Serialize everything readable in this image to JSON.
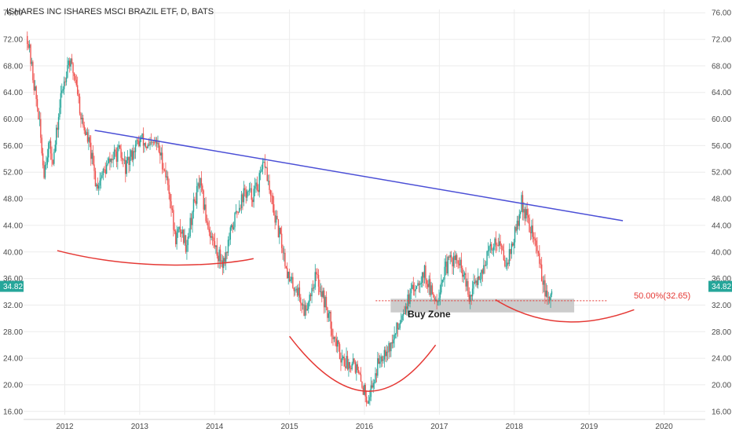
{
  "chart_data": {
    "type": "candlestick",
    "title": "ISHARES INC ISHARES MSCI BRAZIL ETF, D, BATS",
    "y_ticks": [
      76,
      72,
      68,
      64,
      60,
      56,
      52,
      48,
      44,
      40,
      36,
      32,
      28,
      24,
      20,
      16
    ],
    "y_tick_labels": [
      "76.00",
      "72.00",
      "68.00",
      "64.00",
      "60.00",
      "56.00",
      "52.00",
      "48.00",
      "44.00",
      "40.00",
      "36.00",
      "32.00",
      "28.00",
      "24.00",
      "20.00",
      "16.00"
    ],
    "ylim": [
      15.5,
      76.5
    ],
    "x_ticks": [
      2012,
      2013,
      2014,
      2015,
      2016,
      2017,
      2018,
      2019,
      2020
    ],
    "xlim": [
      2011.45,
      2020.55
    ],
    "grid": true,
    "last_price": {
      "value": 34.82,
      "label": "34.82",
      "color": "#26a69a"
    },
    "price_path": [
      [
        2011.5,
        72.5
      ],
      [
        2011.58,
        66.0
      ],
      [
        2011.65,
        60.5
      ],
      [
        2011.72,
        52.0
      ],
      [
        2011.78,
        56.0
      ],
      [
        2011.85,
        54.0
      ],
      [
        2011.95,
        63.5
      ],
      [
        2012.05,
        69.0
      ],
      [
        2012.15,
        66.0
      ],
      [
        2012.22,
        60.0
      ],
      [
        2012.33,
        56.0
      ],
      [
        2012.42,
        50.0
      ],
      [
        2012.52,
        52.0
      ],
      [
        2012.62,
        54.0
      ],
      [
        2012.72,
        55.0
      ],
      [
        2012.82,
        52.5
      ],
      [
        2012.92,
        55.5
      ],
      [
        2013.02,
        57.0
      ],
      [
        2013.12,
        55.5
      ],
      [
        2013.22,
        56.5
      ],
      [
        2013.32,
        53.0
      ],
      [
        2013.4,
        49.0
      ],
      [
        2013.47,
        42.0
      ],
      [
        2013.55,
        43.5
      ],
      [
        2013.62,
        41.0
      ],
      [
        2013.72,
        47.0
      ],
      [
        2013.8,
        50.5
      ],
      [
        2013.88,
        45.5
      ],
      [
        2013.95,
        42.5
      ],
      [
        2014.05,
        39.5
      ],
      [
        2014.12,
        38.5
      ],
      [
        2014.22,
        43.0
      ],
      [
        2014.32,
        47.0
      ],
      [
        2014.4,
        49.0
      ],
      [
        2014.5,
        48.5
      ],
      [
        2014.58,
        50.0
      ],
      [
        2014.67,
        53.5
      ],
      [
        2014.75,
        48.0
      ],
      [
        2014.82,
        44.5
      ],
      [
        2014.9,
        41.0
      ],
      [
        2015.0,
        35.5
      ],
      [
        2015.1,
        34.5
      ],
      [
        2015.2,
        31.0
      ],
      [
        2015.28,
        34.0
      ],
      [
        2015.35,
        36.5
      ],
      [
        2015.43,
        34.0
      ],
      [
        2015.52,
        30.5
      ],
      [
        2015.6,
        27.0
      ],
      [
        2015.68,
        24.5
      ],
      [
        2015.78,
        23.0
      ],
      [
        2015.85,
        24.0
      ],
      [
        2015.93,
        21.0
      ],
      [
        2016.0,
        19.0
      ],
      [
        2016.05,
        18.0
      ],
      [
        2016.12,
        20.5
      ],
      [
        2016.2,
        24.0
      ],
      [
        2016.28,
        25.5
      ],
      [
        2016.36,
        26.0
      ],
      [
        2016.44,
        28.5
      ],
      [
        2016.52,
        31.5
      ],
      [
        2016.6,
        33.0
      ],
      [
        2016.7,
        35.5
      ],
      [
        2016.8,
        37.0
      ],
      [
        2016.9,
        33.5
      ],
      [
        2016.97,
        33.0
      ],
      [
        2017.05,
        36.5
      ],
      [
        2017.15,
        39.0
      ],
      [
        2017.25,
        38.5
      ],
      [
        2017.35,
        35.5
      ],
      [
        2017.4,
        32.5
      ],
      [
        2017.48,
        35.5
      ],
      [
        2017.58,
        37.5
      ],
      [
        2017.68,
        40.5
      ],
      [
        2017.78,
        42.0
      ],
      [
        2017.88,
        38.5
      ],
      [
        2017.95,
        40.0
      ],
      [
        2018.05,
        44.5
      ],
      [
        2018.1,
        47.5
      ],
      [
        2018.17,
        45.0
      ],
      [
        2018.25,
        42.5
      ],
      [
        2018.33,
        39.0
      ],
      [
        2018.4,
        34.5
      ],
      [
        2018.45,
        32.0
      ],
      [
        2018.5,
        34.8
      ]
    ],
    "annotations": {
      "trendline": {
        "color": "#4b4fd6",
        "points": [
          [
            2012.4,
            58.3
          ],
          [
            2019.45,
            44.7
          ]
        ]
      },
      "curves": [
        {
          "color": "#e53935",
          "points": [
            [
              2011.9,
              40.2
            ],
            [
              2013.0,
              37.0
            ],
            [
              2014.1,
              38.0
            ],
            [
              2014.52,
              39.0
            ]
          ]
        },
        {
          "color": "#e53935",
          "points": [
            [
              2015.0,
              27.3
            ],
            [
              2015.8,
              15.5
            ],
            [
              2016.4,
              17.5
            ],
            [
              2016.95,
              26.0
            ]
          ]
        },
        {
          "color": "#e53935",
          "points": [
            [
              2017.75,
              32.8
            ],
            [
              2018.45,
              28.0
            ],
            [
              2019.1,
              29.2
            ],
            [
              2019.6,
              31.3
            ]
          ]
        }
      ],
      "buy_zone": {
        "label": "Buy Zone",
        "y_top": 32.95,
        "y_bottom": 30.9,
        "x_start": 2016.35,
        "x_end": 2018.8,
        "fill": "#cccccc"
      },
      "fib_level": {
        "value": 32.65,
        "label": "50.00%(32.65)",
        "color": "#e53935",
        "x_start": 2016.15,
        "x_end": 2019.25
      }
    }
  }
}
